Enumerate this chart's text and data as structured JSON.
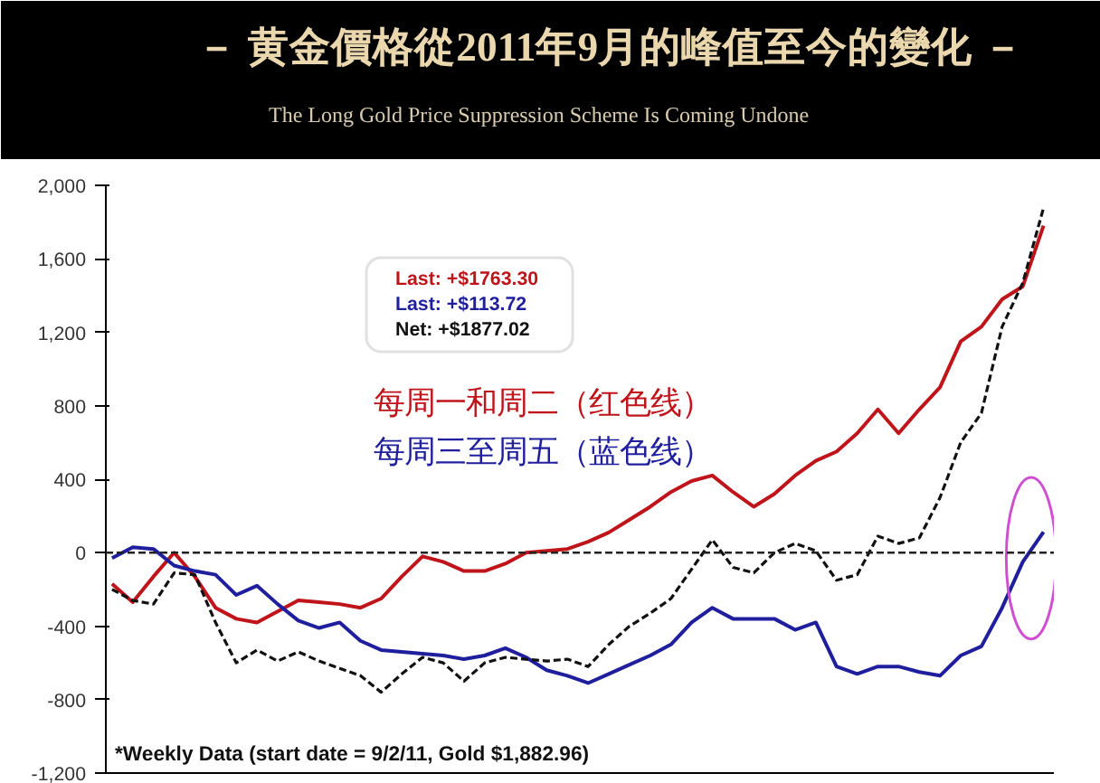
{
  "chart_data": {
    "type": "line",
    "title": "－ 黄金價格從2011年9月的峰值至今的變化 －",
    "subtitle": "The Long Gold Price Suppression Scheme Is Coming Undone",
    "categories": [
      null,
      null,
      null,
      null,
      null,
      null,
      null,
      null,
      null,
      null,
      null,
      null,
      null,
      null,
      null,
      null,
      null,
      null,
      null,
      null,
      null,
      null,
      null,
      null,
      null,
      null,
      null,
      null,
      null,
      null,
      null,
      null,
      null,
      null,
      null,
      null,
      null,
      null,
      null,
      null,
      null,
      null,
      null,
      null,
      null,
      null
    ],
    "ylim": [
      -1200,
      2000
    ],
    "yticks": [
      {
        "value": -1200,
        "label": "-1,200"
      },
      {
        "value": -800,
        "label": "-800"
      },
      {
        "value": -400,
        "label": "-400"
      },
      {
        "value": 0,
        "label": "0"
      },
      {
        "value": 400,
        "label": "400"
      },
      {
        "value": 800,
        "label": "800"
      },
      {
        "value": 1200,
        "label": "1,200"
      },
      {
        "value": 1600,
        "label": "1,600"
      },
      {
        "value": 2000,
        "label": "2,000"
      }
    ],
    "tick_labels": "y",
    "grid": false,
    "series": [
      {
        "name": "每周一和周二（红色线）",
        "color": "#c0141b",
        "line_style": "solid",
        "values": [
          -170,
          -270,
          -130,
          0,
          -130,
          -300,
          -360,
          -380,
          -320,
          -260,
          -270,
          -280,
          -300,
          -250,
          -130,
          -20,
          -50,
          -100,
          -100,
          -60,
          0,
          10,
          20,
          60,
          110,
          180,
          250,
          330,
          390,
          420,
          330,
          250,
          320,
          420,
          500,
          550,
          650,
          780,
          650,
          780,
          900,
          1150,
          1230,
          1380,
          1450,
          1780
        ]
      },
      {
        "name": "每周三至周五（蓝色线）",
        "color": "#1f1f9e",
        "line_style": "solid",
        "values": [
          -30,
          30,
          20,
          -70,
          -100,
          -120,
          -230,
          -180,
          -280,
          -370,
          -410,
          -380,
          -480,
          -530,
          -540,
          -550,
          -560,
          -580,
          -560,
          -520,
          -570,
          -640,
          -670,
          -710,
          -660,
          -610,
          -560,
          -500,
          -380,
          -300,
          -360,
          -360,
          -360,
          -420,
          -380,
          -620,
          -660,
          -620,
          -620,
          -650,
          -670,
          -560,
          -510,
          -300,
          -50,
          113
        ]
      },
      {
        "color": "#111111",
        "line_style": "dashed",
        "values": [
          -200,
          -260,
          -280,
          -110,
          -120,
          -380,
          -600,
          -530,
          -590,
          -540,
          -590,
          -630,
          -670,
          -760,
          -660,
          -570,
          -600,
          -700,
          -600,
          -570,
          -580,
          -590,
          -580,
          -620,
          -500,
          -400,
          -330,
          -250,
          -90,
          70,
          -80,
          -110,
          0,
          50,
          10,
          -150,
          -120,
          90,
          50,
          80,
          300,
          600,
          760,
          1230,
          1470,
          1877
        ]
      }
    ],
    "ref_lines": [
      {
        "axis": "y",
        "value": 0,
        "color": "#222222",
        "line_style": "dashed"
      }
    ],
    "annotations": [
      "Last: +$1763.30",
      "Last: +$113.72",
      "Net: +$1877.02",
      "*Weekly Data (start date = 9/2/11, Gold $1,882.96)"
    ]
  }
}
